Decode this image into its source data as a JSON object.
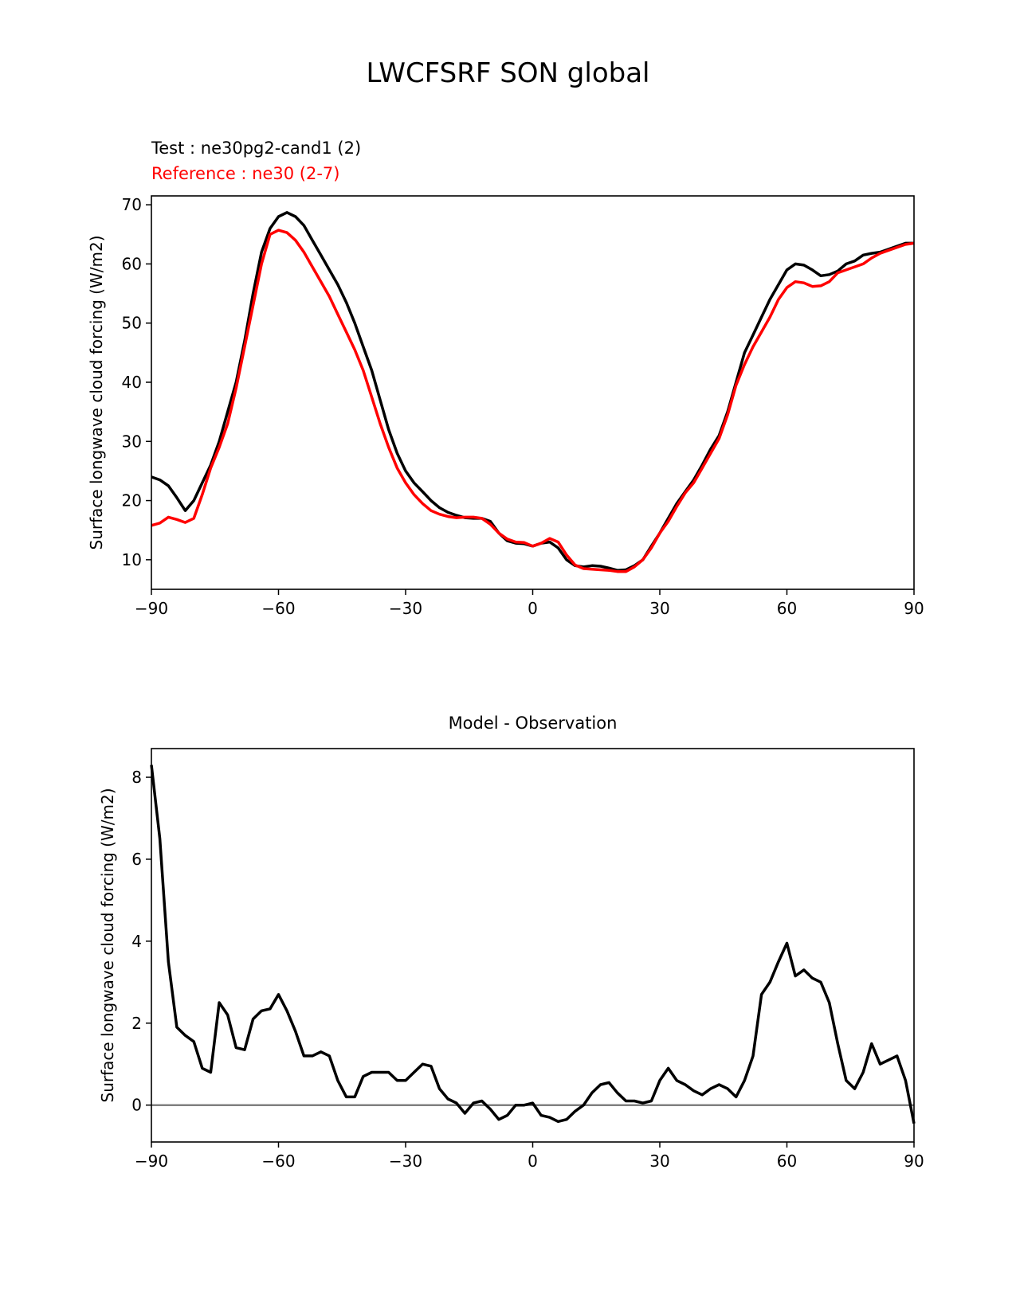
{
  "figure": {
    "title": "LWCFSRF SON global"
  },
  "chart_data": [
    {
      "type": "line",
      "test_label": "Test : ne30pg2-cand1 (2)",
      "reference_label": "Reference : ne30 (2-7)",
      "xlabel": "",
      "ylabel": "Surface longwave cloud forcing (W/m2)",
      "xlim": [
        -90,
        90
      ],
      "ylim": [
        5,
        71.5
      ],
      "xticks": [
        -90,
        -60,
        -30,
        0,
        30,
        60,
        90
      ],
      "xtick_labels": [
        "−90",
        "−60",
        "−30",
        "0",
        "30",
        "60",
        "90"
      ],
      "yticks": [
        10,
        20,
        30,
        40,
        50,
        60,
        70
      ],
      "ytick_labels": [
        "10",
        "20",
        "30",
        "40",
        "50",
        "60",
        "70"
      ],
      "colors": {
        "test": "#000000",
        "reference": "#ff0000"
      },
      "series": [
        {
          "name": "Test : ne30pg2-cand1 (2)",
          "x": [
            -90,
            -88,
            -86,
            -84,
            -82,
            -80,
            -78,
            -76,
            -74,
            -72,
            -70,
            -68,
            -66,
            -64,
            -62,
            -60,
            -58,
            -56,
            -54,
            -52,
            -50,
            -48,
            -46,
            -44,
            -42,
            -40,
            -38,
            -36,
            -34,
            -32,
            -30,
            -28,
            -26,
            -24,
            -22,
            -20,
            -18,
            -16,
            -14,
            -12,
            -10,
            -8,
            -6,
            -4,
            -2,
            0,
            2,
            4,
            6,
            8,
            10,
            12,
            14,
            16,
            18,
            20,
            22,
            24,
            26,
            28,
            30,
            32,
            34,
            36,
            38,
            40,
            42,
            44,
            46,
            48,
            50,
            52,
            54,
            56,
            58,
            60,
            62,
            64,
            66,
            68,
            70,
            72,
            74,
            76,
            78,
            80,
            82,
            84,
            86,
            88,
            90
          ],
          "y": [
            24,
            23.5,
            22.5,
            20.5,
            18.3,
            20,
            23,
            26,
            30,
            35,
            40,
            47,
            55,
            62,
            66,
            68,
            68.7,
            68,
            66.5,
            64,
            61.5,
            59,
            56.5,
            53.5,
            50,
            46,
            42,
            37,
            32,
            28,
            25,
            23,
            21.5,
            20,
            18.8,
            18,
            17.5,
            17.1,
            17,
            17,
            16.5,
            14.5,
            13.2,
            12.8,
            12.7,
            12.3,
            12.8,
            13,
            12,
            10,
            9,
            8.8,
            9,
            8.9,
            8.6,
            8.2,
            8.3,
            9,
            10,
            12.3,
            14.5,
            17,
            19.5,
            21.5,
            23.5,
            26,
            28.7,
            31,
            35,
            40,
            45,
            48,
            51,
            54,
            56.5,
            59,
            60,
            59.8,
            59,
            58,
            58.2,
            58.8,
            60,
            60.5,
            61.5,
            61.8,
            62,
            62.5,
            63,
            63.5,
            63.5
          ]
        },
        {
          "name": "Reference : ne30 (2-7)",
          "x": [
            -90,
            -88,
            -86,
            -84,
            -82,
            -80,
            -78,
            -76,
            -74,
            -72,
            -70,
            -68,
            -66,
            -64,
            -62,
            -60,
            -58,
            -56,
            -54,
            -52,
            -50,
            -48,
            -46,
            -44,
            -42,
            -40,
            -38,
            -36,
            -34,
            -32,
            -30,
            -28,
            -26,
            -24,
            -22,
            -20,
            -18,
            -16,
            -14,
            -12,
            -10,
            -8,
            -6,
            -4,
            -2,
            0,
            2,
            4,
            6,
            8,
            10,
            12,
            14,
            16,
            18,
            20,
            22,
            24,
            26,
            28,
            30,
            32,
            34,
            36,
            38,
            40,
            42,
            44,
            46,
            48,
            50,
            52,
            54,
            56,
            58,
            60,
            62,
            64,
            66,
            68,
            70,
            72,
            74,
            76,
            78,
            80,
            82,
            84,
            86,
            88,
            90
          ],
          "y": [
            15.8,
            16.2,
            17.2,
            16.8,
            16.3,
            17,
            21,
            25.5,
            29,
            33,
            39,
            46,
            53,
            60,
            65,
            65.7,
            65.3,
            64,
            62,
            59.5,
            57,
            54.5,
            51.5,
            48.5,
            45.5,
            42,
            37.5,
            33,
            29,
            25.5,
            23,
            21,
            19.5,
            18.3,
            17.7,
            17.3,
            17.1,
            17.2,
            17.2,
            17,
            16,
            14.5,
            13.5,
            13,
            12.9,
            12.3,
            12.8,
            13.6,
            13,
            10.8,
            9.1,
            8.5,
            8.4,
            8.3,
            8.2,
            8,
            8,
            8.8,
            10,
            12,
            14.5,
            16.5,
            19,
            21.3,
            23,
            25.5,
            28,
            30.5,
            34.5,
            39.5,
            43,
            46,
            48.5,
            51,
            54,
            56,
            57,
            56.8,
            56.2,
            56.3,
            57,
            58.5,
            59,
            59.5,
            60,
            61,
            61.8,
            62.3,
            62.8,
            63.3,
            63.5
          ]
        }
      ]
    },
    {
      "type": "line",
      "title": "Model - Observation",
      "xlabel": "",
      "ylabel": "Surface longwave cloud forcing (W/m2)",
      "xlim": [
        -90,
        90
      ],
      "ylim": [
        -0.9,
        8.7
      ],
      "xticks": [
        -90,
        -60,
        -30,
        0,
        30,
        60,
        90
      ],
      "xtick_labels": [
        "−90",
        "−60",
        "−30",
        "0",
        "30",
        "60",
        "90"
      ],
      "yticks": [
        0,
        2,
        4,
        6,
        8
      ],
      "ytick_labels": [
        "0",
        "2",
        "4",
        "6",
        "8"
      ],
      "zero_line": 0,
      "colors": {
        "diff": "#000000",
        "zero_line": "#808080"
      },
      "series": [
        {
          "name": "Model - Observation",
          "x": [
            -90,
            -88,
            -86,
            -84,
            -82,
            -80,
            -78,
            -76,
            -74,
            -72,
            -70,
            -68,
            -66,
            -64,
            -62,
            -60,
            -58,
            -56,
            -54,
            -52,
            -50,
            -48,
            -46,
            -44,
            -42,
            -40,
            -38,
            -36,
            -34,
            -32,
            -30,
            -28,
            -26,
            -24,
            -22,
            -20,
            -18,
            -16,
            -14,
            -12,
            -10,
            -8,
            -6,
            -4,
            -2,
            0,
            2,
            4,
            6,
            8,
            10,
            12,
            14,
            16,
            18,
            20,
            22,
            24,
            26,
            28,
            30,
            32,
            34,
            36,
            38,
            40,
            42,
            44,
            46,
            48,
            50,
            52,
            54,
            56,
            58,
            60,
            62,
            64,
            66,
            68,
            70,
            72,
            74,
            76,
            78,
            80,
            82,
            84,
            86,
            88,
            90
          ],
          "y": [
            8.3,
            6.5,
            3.5,
            1.9,
            1.7,
            1.55,
            0.9,
            0.8,
            2.5,
            2.2,
            1.4,
            1.35,
            2.1,
            2.3,
            2.35,
            2.7,
            2.3,
            1.8,
            1.2,
            1.2,
            1.3,
            1.2,
            0.6,
            0.2,
            0.2,
            0.7,
            0.8,
            0.8,
            0.8,
            0.6,
            0.6,
            0.8,
            1.0,
            0.95,
            0.4,
            0.15,
            0.05,
            -0.2,
            0.05,
            0.1,
            -0.1,
            -0.35,
            -0.25,
            0.0,
            0.0,
            0.05,
            -0.25,
            -0.3,
            -0.4,
            -0.35,
            -0.15,
            0.0,
            0.3,
            0.5,
            0.55,
            0.3,
            0.1,
            0.1,
            0.05,
            0.1,
            0.6,
            0.9,
            0.6,
            0.5,
            0.35,
            0.25,
            0.4,
            0.5,
            0.4,
            0.2,
            0.6,
            1.2,
            2.7,
            3.0,
            3.5,
            3.95,
            3.15,
            3.3,
            3.1,
            3.0,
            2.5,
            1.5,
            0.6,
            0.4,
            0.8,
            1.5,
            1.0,
            1.1,
            1.2,
            0.6,
            -0.45
          ]
        }
      ]
    }
  ]
}
